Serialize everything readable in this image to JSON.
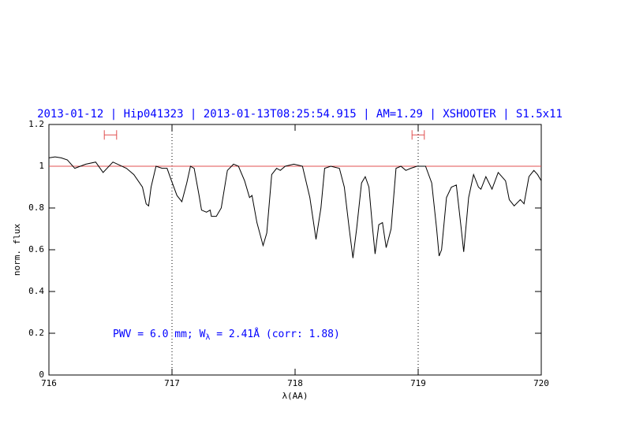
{
  "chart_data": {
    "type": "line",
    "title": "2013-01-12 | Hip041323 | 2013-01-13T08:25:54.915 | AM=1.29 | XSHOOTER | S1.5x11",
    "xlabel": "λ(AA)",
    "ylabel": "norm. flux",
    "annotation": [
      "PWV = 6.0 mm; W",
      "λ",
      " = 2.41Å (corr: 1.88)"
    ],
    "xlim": [
      716,
      720
    ],
    "ylim": [
      0,
      1.2
    ],
    "xticks": [
      716,
      717,
      718,
      719,
      720
    ],
    "yticks": [
      0,
      0.2,
      0.4,
      0.6,
      0.8,
      1,
      1.2
    ],
    "series": [
      {
        "color": "#000000",
        "x": [
          716.0,
          716.05,
          716.1,
          716.15,
          716.21,
          716.3,
          716.38,
          716.44,
          716.52,
          716.63,
          716.69,
          716.76,
          716.79,
          716.81,
          716.83,
          716.87,
          716.92,
          716.96,
          716.99,
          717.04,
          717.08,
          717.12,
          717.15,
          717.18,
          717.22,
          717.24,
          717.28,
          717.31,
          717.32,
          717.36,
          717.4,
          717.45,
          717.5,
          717.54,
          717.59,
          717.63,
          717.65,
          717.69,
          717.74,
          717.77,
          717.81,
          717.85,
          717.88,
          717.92,
          717.99,
          718.06,
          718.12,
          718.17,
          718.21,
          718.24,
          718.29,
          718.36,
          718.4,
          718.44,
          718.47,
          718.5,
          718.54,
          718.57,
          718.6,
          718.63,
          718.65,
          718.68,
          718.71,
          718.74,
          718.78,
          718.82,
          718.86,
          718.9,
          718.94,
          718.99,
          719.06,
          719.11,
          719.15,
          719.17,
          719.19,
          719.23,
          719.27,
          719.31,
          719.35,
          719.37,
          719.41,
          719.45,
          719.49,
          719.51,
          719.55,
          719.6,
          719.65,
          719.71,
          719.74,
          719.78,
          719.83,
          719.86,
          719.9,
          719.94,
          719.97,
          720.0
        ],
        "values": [
          1.04,
          1.045,
          1.04,
          1.03,
          0.99,
          1.01,
          1.02,
          0.97,
          1.02,
          0.99,
          0.96,
          0.9,
          0.82,
          0.81,
          0.9,
          1.0,
          0.99,
          0.99,
          0.94,
          0.86,
          0.83,
          0.92,
          1.0,
          0.99,
          0.86,
          0.79,
          0.78,
          0.79,
          0.76,
          0.76,
          0.8,
          0.98,
          1.01,
          1.0,
          0.93,
          0.85,
          0.86,
          0.73,
          0.62,
          0.68,
          0.96,
          0.99,
          0.98,
          1.0,
          1.01,
          1.0,
          0.85,
          0.65,
          0.8,
          0.99,
          1.0,
          0.99,
          0.9,
          0.7,
          0.56,
          0.7,
          0.92,
          0.95,
          0.9,
          0.7,
          0.58,
          0.72,
          0.73,
          0.61,
          0.7,
          0.99,
          1.0,
          0.98,
          0.99,
          1.0,
          1.0,
          0.92,
          0.7,
          0.57,
          0.6,
          0.85,
          0.9,
          0.91,
          0.7,
          0.59,
          0.85,
          0.96,
          0.9,
          0.89,
          0.95,
          0.89,
          0.97,
          0.93,
          0.84,
          0.81,
          0.84,
          0.82,
          0.95,
          0.98,
          0.96,
          0.93
        ]
      }
    ],
    "hline": {
      "y": 1,
      "color": "#e05050"
    },
    "vlines": [
      717,
      719
    ],
    "markers": {
      "color": "#e05050",
      "y": 1.15,
      "x": [
        716.5,
        719.0
      ],
      "xerr": [
        0.05,
        0.05
      ]
    },
    "title_color": "#0000ff"
  }
}
